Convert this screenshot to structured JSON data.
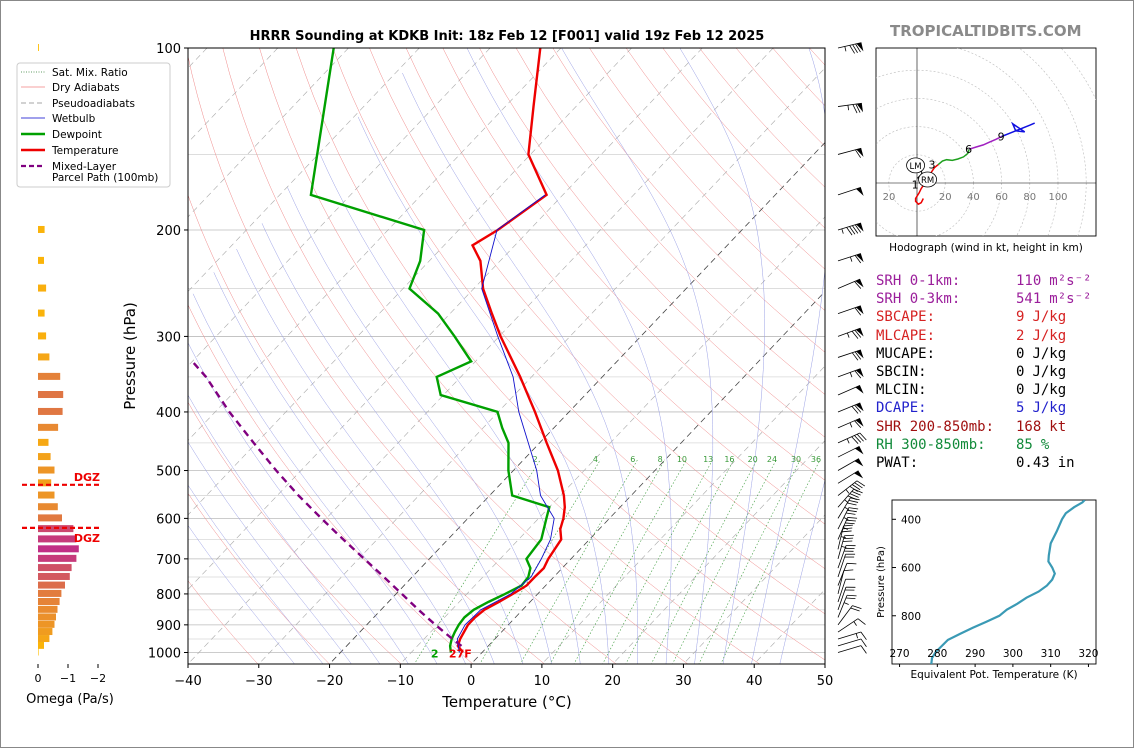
{
  "chart_data": [
    {
      "type": "line",
      "title": "HRRR Sounding at KDKB Init: 18z Feb 12 [F001] valid 19z Feb 12 2025",
      "xlabel": "Temperature (°C)",
      "ylabel": "Pressure (hPa)",
      "xlim": [
        -40,
        50
      ],
      "ylim": [
        1050,
        100
      ],
      "y_scale": "log",
      "skew": true,
      "grid": true,
      "x_ticks": [
        "−40",
        "−30",
        "−20",
        "−10",
        "0",
        "10",
        "20",
        "30",
        "40",
        "50"
      ],
      "y_ticks": [
        "100",
        "200",
        "300",
        "400",
        "500",
        "600",
        "700",
        "800",
        "900",
        "1000"
      ],
      "mixing_ratio_labels": [
        "2",
        "4",
        "6",
        "8",
        "10",
        "13",
        "16",
        "20",
        "24",
        "30",
        "36"
      ],
      "surface_temp_label": "27F",
      "surface_dew_label": "2",
      "legend": [
        {
          "label": "Sat. Mix. Ratio",
          "color": "#2e7d32",
          "style": "dotted"
        },
        {
          "label": "Dry Adiabats",
          "color": "#f08080",
          "style": "solid"
        },
        {
          "label": "Pseudoadiabats",
          "color": "#888888",
          "style": "dashed"
        },
        {
          "label": "Wetbulb",
          "color": "#0000cc",
          "style": "solid"
        },
        {
          "label": "Dewpoint",
          "color": "#00a000",
          "style": "solid"
        },
        {
          "label": "Temperature",
          "color": "#ee0000",
          "style": "solid"
        },
        {
          "label": "Mixed-Layer Parcel Path (100mb)",
          "color": "#800080",
          "style": "dashed"
        }
      ],
      "series": [
        {
          "name": "Temperature",
          "color": "#ee0000",
          "points": [
            [
              1000,
              -2.7
            ],
            [
              975,
              -4.3
            ],
            [
              950,
              -4.9
            ],
            [
              925,
              -5.3
            ],
            [
              900,
              -5.7
            ],
            [
              875,
              -5.7
            ],
            [
              850,
              -5.4
            ],
            [
              825,
              -4.4
            ],
            [
              800,
              -3.5
            ],
            [
              775,
              -2.7
            ],
            [
              750,
              -2.7
            ],
            [
              725,
              -2.6
            ],
            [
              700,
              -3.2
            ],
            [
              650,
              -4.0
            ],
            [
              625,
              -5.5
            ],
            [
              600,
              -6.5
            ],
            [
              575,
              -7.8
            ],
            [
              550,
              -9.5
            ],
            [
              500,
              -13.7
            ],
            [
              450,
              -19.0
            ],
            [
              400,
              -24.8
            ],
            [
              350,
              -31.6
            ],
            [
              300,
              -39.8
            ],
            [
              275,
              -44.1
            ],
            [
              250,
              -48.7
            ],
            [
              225,
              -52.8
            ],
            [
              212,
              -56.0
            ],
            [
              200,
              -54.5
            ],
            [
              175,
              -52.3
            ],
            [
              150,
              -60.3
            ],
            [
              125,
              -66.0
            ],
            [
              100,
              -72.9
            ]
          ]
        },
        {
          "name": "Dewpoint",
          "color": "#00a000",
          "points": [
            [
              1000,
              -4.4
            ],
            [
              975,
              -5.4
            ],
            [
              950,
              -6.1
            ],
            [
              925,
              -6.6
            ],
            [
              900,
              -7.0
            ],
            [
              875,
              -7.2
            ],
            [
              850,
              -6.9
            ],
            [
              825,
              -5.9
            ],
            [
              800,
              -4.6
            ],
            [
              775,
              -3.4
            ],
            [
              750,
              -3.6
            ],
            [
              725,
              -4.5
            ],
            [
              700,
              -6.3
            ],
            [
              650,
              -6.8
            ],
            [
              600,
              -8.9
            ],
            [
              575,
              -10.0
            ],
            [
              550,
              -16.8
            ],
            [
              500,
              -20.7
            ],
            [
              450,
              -24.4
            ],
            [
              425,
              -27.3
            ],
            [
              400,
              -30.1
            ],
            [
              375,
              -40.4
            ],
            [
              350,
              -43.4
            ],
            [
              330,
              -40.6
            ],
            [
              300,
              -46.3
            ],
            [
              275,
              -51.7
            ],
            [
              250,
              -59.1
            ],
            [
              225,
              -61.3
            ],
            [
              200,
              -64.9
            ],
            [
              175,
              -85.6
            ],
            [
              100,
              -102.1
            ]
          ]
        },
        {
          "name": "Wetbulb",
          "color": "#1010cc",
          "points": [
            [
              1000,
              -3.2
            ],
            [
              950,
              -5.3
            ],
            [
              900,
              -6.1
            ],
            [
              850,
              -5.9
            ],
            [
              800,
              -3.8
            ],
            [
              750,
              -3.2
            ],
            [
              700,
              -4.2
            ],
            [
              650,
              -5.5
            ],
            [
              600,
              -7.8
            ],
            [
              550,
              -12.8
            ],
            [
              500,
              -16.7
            ],
            [
              450,
              -21.6
            ],
            [
              400,
              -27.1
            ],
            [
              350,
              -32.6
            ],
            [
              300,
              -40.2
            ],
            [
              250,
              -48.9
            ],
            [
              200,
              -54.6
            ],
            [
              175,
              -52.5
            ]
          ]
        },
        {
          "name": "Mixed-Layer Parcel Path (100mb)",
          "color": "#800080",
          "points": [
            [
              975,
              -3.8
            ],
            [
              950,
              -6.0
            ],
            [
              900,
              -10.3
            ],
            [
              850,
              -14.7
            ],
            [
              800,
              -19.2
            ],
            [
              750,
              -24.0
            ],
            [
              700,
              -29.2
            ],
            [
              650,
              -34.8
            ],
            [
              600,
              -40.7
            ],
            [
              550,
              -47.0
            ],
            [
              500,
              -53.5
            ],
            [
              450,
              -60.4
            ],
            [
              400,
              -68.0
            ],
            [
              350,
              -76.0
            ],
            [
              330,
              -80.0
            ]
          ]
        }
      ]
    },
    {
      "type": "bar",
      "name": "omega",
      "xlabel": "Omega (Pa/s)",
      "x_ticks": [
        "0",
        "−1",
        "−2"
      ],
      "dgz_label": "DGZ",
      "dgz_levels": [
        528,
        622
      ],
      "levels_hPa": [
        1000,
        975,
        950,
        925,
        900,
        875,
        850,
        825,
        800,
        775,
        750,
        725,
        700,
        675,
        650,
        625,
        600,
        575,
        550,
        525,
        500,
        475,
        450,
        425,
        400,
        375,
        350,
        325,
        300,
        275,
        250,
        225,
        200,
        175,
        150,
        125,
        100
      ],
      "values": [
        -0.02,
        -0.2,
        -0.38,
        -0.48,
        -0.55,
        -0.6,
        -0.65,
        -0.72,
        -0.78,
        -0.9,
        -1.06,
        -1.12,
        -1.28,
        -1.36,
        -1.28,
        -1.18,
        -0.8,
        -0.66,
        -0.55,
        -0.44,
        -0.55,
        -0.42,
        -0.35,
        -0.67,
        -0.82,
        -0.84,
        -0.74,
        -0.38,
        -0.27,
        -0.22,
        -0.27,
        -0.2,
        -0.22,
        0.0,
        -0.02,
        -0.04,
        -0.03
      ],
      "colors_note": "orange to magenta by magnitude"
    },
    {
      "type": "line",
      "name": "hodograph",
      "xlabel": "Hodograph (wind in kt, height in km)",
      "ring_labels": [
        "20",
        "40",
        "60",
        "80",
        "100"
      ],
      "height_labels": [
        "1",
        "2",
        "3",
        "6",
        "9"
      ],
      "storm_motion_labels": [
        "LM",
        "RM"
      ],
      "segments": [
        {
          "color": "#ee0000",
          "points": [
            [
              9,
              -22
            ],
            [
              6,
              -28
            ],
            [
              2,
              -30
            ],
            [
              -2,
              -26
            ],
            [
              -2,
              -22
            ],
            [
              3,
              -14
            ],
            [
              6,
              -8
            ],
            [
              10,
              -2
            ],
            [
              14,
              8
            ],
            [
              18,
              12
            ],
            [
              25,
              22
            ],
            [
              30,
              26
            ]
          ]
        },
        {
          "color": "#1ea01e",
          "points": [
            [
              30,
              26
            ],
            [
              36,
              31
            ],
            [
              42,
              33
            ],
            [
              50,
              32
            ],
            [
              58,
              34
            ],
            [
              66,
              37
            ],
            [
              72,
              42
            ],
            [
              74,
              48
            ]
          ]
        },
        {
          "color": "#a020c0",
          "points": [
            [
              74,
              48
            ],
            [
              84,
              51
            ],
            [
              94,
              54
            ],
            [
              103,
              58
            ],
            [
              112,
              62
            ],
            [
              120,
              66
            ]
          ]
        },
        {
          "color": "#1010e0",
          "points": [
            [
              120,
              66
            ],
            [
              130,
              70
            ],
            [
              145,
              76
            ],
            [
              160,
              82
            ],
            [
              167,
              85
            ]
          ]
        }
      ],
      "storm_motion": {
        "LM": [
          -2,
          25
        ],
        "RM": [
          15,
          5
        ]
      }
    },
    {
      "type": "line",
      "name": "theta-e",
      "xlabel": "Equivalent Pot. Temperature (K)",
      "ylabel": "Pressure (hPa)",
      "xlim": [
        268,
        322
      ],
      "ylim": [
        1000,
        320
      ],
      "x_ticks": [
        "270",
        "280",
        "290",
        "300",
        "310",
        "320"
      ],
      "y_ticks": [
        "400",
        "600",
        "800"
      ],
      "color": "#3a9ab5",
      "points": [
        [
          1000,
          278.4
        ],
        [
          975,
          278.6
        ],
        [
          950,
          279.6
        ],
        [
          925,
          281.2
        ],
        [
          900,
          282.8
        ],
        [
          875,
          286.0
        ],
        [
          850,
          289.4
        ],
        [
          825,
          293.0
        ],
        [
          800,
          296.4
        ],
        [
          775,
          298.4
        ],
        [
          750,
          301.2
        ],
        [
          725,
          303.6
        ],
        [
          700,
          306.8
        ],
        [
          675,
          309.0
        ],
        [
          650,
          310.4
        ],
        [
          625,
          311.1
        ],
        [
          600,
          310.4
        ],
        [
          575,
          309.4
        ],
        [
          550,
          309.5
        ],
        [
          500,
          310.0
        ],
        [
          450,
          311.6
        ],
        [
          400,
          313.0
        ],
        [
          375,
          314.0
        ],
        [
          350,
          316.2
        ],
        [
          330,
          318.4
        ],
        [
          320,
          319.0
        ]
      ]
    }
  ],
  "wind_barbs": [
    {
      "p": 100,
      "u": -83,
      "v": -19
    },
    {
      "p": 125,
      "u": -72,
      "v": -10
    },
    {
      "p": 150,
      "u": -56,
      "v": -15
    },
    {
      "p": 175,
      "u": -48,
      "v": -16
    },
    {
      "p": 200,
      "u": -92,
      "v": -28
    },
    {
      "p": 225,
      "u": -62,
      "v": -20
    },
    {
      "p": 250,
      "u": -56,
      "v": -24
    },
    {
      "p": 275,
      "u": -58,
      "v": -20
    },
    {
      "p": 300,
      "u": -70,
      "v": -26
    },
    {
      "p": 325,
      "u": -66,
      "v": -22
    },
    {
      "p": 350,
      "u": -60,
      "v": -22
    },
    {
      "p": 375,
      "u": -48,
      "v": -21
    },
    {
      "p": 400,
      "u": -66,
      "v": -27
    },
    {
      "p": 425,
      "u": -60,
      "v": -26
    },
    {
      "p": 450,
      "u": -40,
      "v": -18
    },
    {
      "p": 475,
      "u": -44,
      "v": -22
    },
    {
      "p": 500,
      "u": -42,
      "v": -24
    },
    {
      "p": 525,
      "u": -42,
      "v": -26
    },
    {
      "p": 550,
      "u": -36,
      "v": -28
    },
    {
      "p": 575,
      "u": -28,
      "v": -32
    },
    {
      "p": 600,
      "u": -18,
      "v": -30
    },
    {
      "p": 625,
      "u": -16,
      "v": -32
    },
    {
      "p": 650,
      "u": -14,
      "v": -32
    },
    {
      "p": 675,
      "u": -8,
      "v": -34
    },
    {
      "p": 700,
      "u": -10,
      "v": -36
    },
    {
      "p": 725,
      "u": -10,
      "v": -28
    },
    {
      "p": 750,
      "u": -6,
      "v": -18
    },
    {
      "p": 775,
      "u": -4,
      "v": -10
    },
    {
      "p": 800,
      "u": -2,
      "v": -8
    },
    {
      "p": 825,
      "u": -3,
      "v": -9
    },
    {
      "p": 850,
      "u": -7,
      "v": -20
    },
    {
      "p": 875,
      "u": -9,
      "v": -22
    },
    {
      "p": 900,
      "u": -12,
      "v": -16
    },
    {
      "p": 925,
      "u": -12,
      "v": -8
    },
    {
      "p": 950,
      "u": -13,
      "v": -4
    },
    {
      "p": 975,
      "u": -10,
      "v": -3
    },
    {
      "p": 1000,
      "u": -10,
      "v": -3
    }
  ],
  "watermark": "TROPICALTIDBITS.COM",
  "indices": [
    {
      "label": "SRH 0-1km:",
      "value": "110",
      "unit": "m²s⁻²",
      "color": "#9b1e9b"
    },
    {
      "label": "SRH 0-3km:",
      "value": "541",
      "unit": "m²s⁻²",
      "color": "#9b1e9b"
    },
    {
      "label": "SBCAPE:",
      "value": "9",
      "unit": "J/kg",
      "color": "#d62222"
    },
    {
      "label": "MLCAPE:",
      "value": "2",
      "unit": "J/kg",
      "color": "#d62222"
    },
    {
      "label": "MUCAPE:",
      "value": "0",
      "unit": "J/kg",
      "color": "#000000"
    },
    {
      "label": "SBCIN:",
      "value": "0",
      "unit": "J/kg",
      "color": "#000000"
    },
    {
      "label": "MLCIN:",
      "value": "0",
      "unit": "J/kg",
      "color": "#000000"
    },
    {
      "label": "DCAPE:",
      "value": "5",
      "unit": "J/kg",
      "color": "#2222cc"
    },
    {
      "label": "SHR 200-850mb:",
      "value": "168",
      "unit": "kt",
      "color": "#a01010"
    },
    {
      "label": "RH 300-850mb:",
      "value": "85",
      "unit": "%",
      "color": "#128a3a"
    },
    {
      "label": "PWAT:",
      "value": "0.43",
      "unit": "in",
      "color": "#000000"
    }
  ]
}
